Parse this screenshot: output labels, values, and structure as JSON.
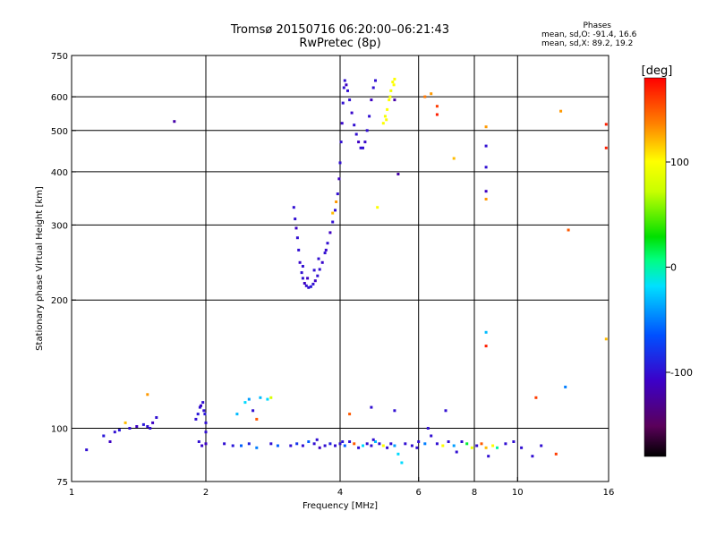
{
  "header": {
    "title_line1": "Tromsø 20150716 06:20:00–06:21:43",
    "title_line2": "RwPretec (8p)"
  },
  "phases": {
    "heading": "Phases",
    "line_o": "mean, sd,O: -91.4, 16.6",
    "line_x": "mean, sd,X:  89.2, 19.2"
  },
  "colorbar": {
    "label": "[deg]",
    "ticks": [
      "100",
      "0",
      "-100"
    ],
    "range": [
      -180,
      180
    ],
    "tick_values": [
      100,
      0,
      -100
    ]
  },
  "chart_data": {
    "type": "scatter",
    "xlabel": "Frequency [MHz]",
    "ylabel": "Stationary phase Virtual Height [km]",
    "x_scale": "log",
    "y_scale": "log",
    "xlim": [
      1,
      16
    ],
    "ylim": [
      75,
      750
    ],
    "x_ticks": [
      1,
      2,
      4,
      6,
      8,
      10,
      16
    ],
    "x_tick_labels": [
      "1",
      "2",
      "4",
      "6",
      "8",
      "10",
      "16"
    ],
    "y_ticks": [
      75,
      100,
      200,
      300,
      400,
      500,
      600,
      750
    ],
    "y_tick_labels": [
      "75",
      "100",
      "200",
      "300",
      "400",
      "500",
      "600",
      "750"
    ],
    "grid_x": [
      2,
      4,
      6,
      8,
      10
    ],
    "grid_y": [
      100,
      200,
      300,
      400,
      500,
      600
    ],
    "grid": true,
    "points": [
      [
        1.08,
        89,
        -100
      ],
      [
        1.18,
        96,
        -95
      ],
      [
        1.22,
        93,
        -110
      ],
      [
        1.25,
        98,
        -100
      ],
      [
        1.28,
        99,
        -95
      ],
      [
        1.32,
        103,
        120
      ],
      [
        1.35,
        100,
        -100
      ],
      [
        1.4,
        101,
        -110
      ],
      [
        1.45,
        102,
        -95
      ],
      [
        1.48,
        101,
        -100
      ],
      [
        1.5,
        100,
        -100
      ],
      [
        1.52,
        103,
        -110
      ],
      [
        1.55,
        106,
        -100
      ],
      [
        1.48,
        120,
        130
      ],
      [
        1.7,
        525,
        -120
      ],
      [
        1.9,
        105,
        -100
      ],
      [
        1.92,
        108,
        -95
      ],
      [
        1.94,
        112,
        -100
      ],
      [
        1.95,
        113,
        -105
      ],
      [
        1.97,
        115,
        -100
      ],
      [
        1.98,
        110,
        -100
      ],
      [
        1.99,
        108,
        -95
      ],
      [
        2.0,
        103,
        -100
      ],
      [
        2.0,
        98,
        -100
      ],
      [
        2.0,
        92,
        -110
      ],
      [
        1.93,
        93,
        -100
      ],
      [
        1.96,
        91,
        -105
      ],
      [
        2.2,
        92,
        -100
      ],
      [
        2.3,
        91,
        -95
      ],
      [
        2.35,
        108,
        -30
      ],
      [
        2.45,
        115,
        -20
      ],
      [
        2.5,
        117,
        -40
      ],
      [
        2.55,
        110,
        -100
      ],
      [
        2.6,
        105,
        150
      ],
      [
        2.65,
        118,
        -30
      ],
      [
        2.75,
        117,
        -20
      ],
      [
        2.8,
        118,
        80
      ],
      [
        2.4,
        91,
        -60
      ],
      [
        2.5,
        92,
        -90
      ],
      [
        2.6,
        90,
        -50
      ],
      [
        2.8,
        92,
        -100
      ],
      [
        2.9,
        91,
        -60
      ],
      [
        3.15,
        330,
        -100
      ],
      [
        3.17,
        310,
        -100
      ],
      [
        3.19,
        295,
        -110
      ],
      [
        3.21,
        280,
        -100
      ],
      [
        3.23,
        262,
        -100
      ],
      [
        3.25,
        245,
        -105
      ],
      [
        3.28,
        232,
        -100
      ],
      [
        3.3,
        225,
        -100
      ],
      [
        3.33,
        219,
        -110
      ],
      [
        3.36,
        216,
        -100
      ],
      [
        3.4,
        214,
        -100
      ],
      [
        3.44,
        215,
        -95
      ],
      [
        3.48,
        218,
        -100
      ],
      [
        3.52,
        222,
        -110
      ],
      [
        3.56,
        228,
        -100
      ],
      [
        3.6,
        236,
        -100
      ],
      [
        3.65,
        245,
        -105
      ],
      [
        3.7,
        258,
        -100
      ],
      [
        3.75,
        272,
        -100
      ],
      [
        3.8,
        288,
        -110
      ],
      [
        3.85,
        305,
        -100
      ],
      [
        3.9,
        325,
        -100
      ],
      [
        3.95,
        355,
        -100
      ],
      [
        3.98,
        385,
        -110
      ],
      [
        4.0,
        420,
        -100
      ],
      [
        4.02,
        470,
        -100
      ],
      [
        4.04,
        520,
        -105
      ],
      [
        4.06,
        580,
        -100
      ],
      [
        4.08,
        630,
        -100
      ],
      [
        4.1,
        655,
        -100
      ],
      [
        4.13,
        640,
        -110
      ],
      [
        4.16,
        620,
        -100
      ],
      [
        4.2,
        590,
        -100
      ],
      [
        4.25,
        550,
        -105
      ],
      [
        4.3,
        515,
        -100
      ],
      [
        4.35,
        490,
        -100
      ],
      [
        4.4,
        470,
        -110
      ],
      [
        4.45,
        455,
        -100
      ],
      [
        4.5,
        455,
        -100
      ],
      [
        4.55,
        470,
        -105
      ],
      [
        4.6,
        500,
        -100
      ],
      [
        4.65,
        540,
        -100
      ],
      [
        4.7,
        590,
        -110
      ],
      [
        4.75,
        630,
        -100
      ],
      [
        4.8,
        655,
        -100
      ],
      [
        3.3,
        240,
        -100
      ],
      [
        3.38,
        225,
        -110
      ],
      [
        3.5,
        235,
        -100
      ],
      [
        3.58,
        250,
        -100
      ],
      [
        3.72,
        262,
        -105
      ],
      [
        3.92,
        340,
        130
      ],
      [
        3.85,
        320,
        120
      ],
      [
        4.85,
        330,
        100
      ],
      [
        5.0,
        520,
        100
      ],
      [
        5.05,
        540,
        95
      ],
      [
        5.1,
        560,
        100
      ],
      [
        5.15,
        590,
        100
      ],
      [
        5.2,
        620,
        95
      ],
      [
        5.25,
        650,
        100
      ],
      [
        5.3,
        660,
        100
      ],
      [
        5.08,
        530,
        100
      ],
      [
        5.18,
        600,
        95
      ],
      [
        5.28,
        640,
        100
      ],
      [
        5.3,
        590,
        -120
      ],
      [
        5.4,
        395,
        -120
      ],
      [
        6.2,
        600,
        140
      ],
      [
        6.4,
        610,
        130
      ],
      [
        6.6,
        570,
        160
      ],
      [
        6.6,
        545,
        170
      ],
      [
        7.2,
        430,
        120
      ],
      [
        8.5,
        510,
        130
      ],
      [
        8.5,
        460,
        -100
      ],
      [
        8.5,
        410,
        -100
      ],
      [
        8.5,
        360,
        -110
      ],
      [
        8.5,
        345,
        130
      ],
      [
        8.5,
        168,
        -30
      ],
      [
        8.5,
        156,
        170
      ],
      [
        12.5,
        555,
        130
      ],
      [
        13.0,
        292,
        150
      ],
      [
        15.8,
        517,
        170
      ],
      [
        15.8,
        455,
        170
      ],
      [
        15.8,
        162,
        120
      ],
      [
        12.8,
        125,
        -50
      ],
      [
        11.0,
        118,
        160
      ],
      [
        4.2,
        108,
        150
      ],
      [
        4.7,
        112,
        -100
      ],
      [
        5.3,
        110,
        -100
      ],
      [
        6.9,
        110,
        -100
      ],
      [
        3.1,
        91,
        -100
      ],
      [
        3.2,
        92,
        -80
      ],
      [
        3.3,
        91,
        -100
      ],
      [
        3.4,
        93,
        -60
      ],
      [
        3.5,
        92,
        -100
      ],
      [
        3.6,
        90,
        -110
      ],
      [
        3.7,
        91,
        -100
      ],
      [
        3.8,
        92,
        -90
      ],
      [
        3.9,
        91,
        -100
      ],
      [
        4.0,
        92,
        -100
      ],
      [
        4.1,
        91,
        -60
      ],
      [
        4.2,
        93,
        -100
      ],
      [
        4.3,
        92,
        150
      ],
      [
        4.4,
        90,
        -100
      ],
      [
        4.5,
        91,
        -20
      ],
      [
        4.6,
        92,
        -100
      ],
      [
        4.7,
        91,
        -100
      ],
      [
        4.8,
        93,
        -30
      ],
      [
        4.9,
        92,
        -100
      ],
      [
        5.0,
        91,
        100
      ],
      [
        5.1,
        90,
        -100
      ],
      [
        5.2,
        92,
        -100
      ],
      [
        5.3,
        91,
        -40
      ],
      [
        5.4,
        87,
        -20
      ],
      [
        5.5,
        83,
        -20
      ],
      [
        5.6,
        92,
        -100
      ],
      [
        5.8,
        91,
        -100
      ],
      [
        6.0,
        93,
        -100
      ],
      [
        6.2,
        92,
        -50
      ],
      [
        6.3,
        100,
        -100
      ],
      [
        6.4,
        96,
        -100
      ],
      [
        6.6,
        92,
        -100
      ],
      [
        6.8,
        91,
        100
      ],
      [
        7.0,
        93,
        -100
      ],
      [
        7.2,
        91,
        -40
      ],
      [
        7.5,
        93,
        -100
      ],
      [
        7.7,
        92,
        20
      ],
      [
        7.9,
        90,
        90
      ],
      [
        8.1,
        91,
        -100
      ],
      [
        8.3,
        92,
        150
      ],
      [
        8.5,
        90,
        120
      ],
      [
        8.6,
        86,
        -100
      ],
      [
        8.8,
        91,
        100
      ],
      [
        9.0,
        90,
        0
      ],
      [
        9.4,
        92,
        -100
      ],
      [
        9.8,
        93,
        -100
      ],
      [
        10.2,
        90,
        -100
      ],
      [
        10.8,
        86,
        -100
      ],
      [
        11.3,
        91,
        -100
      ],
      [
        12.2,
        87,
        160
      ],
      [
        3.55,
        94,
        -100
      ],
      [
        4.05,
        93,
        -95
      ],
      [
        4.75,
        94,
        -100
      ],
      [
        5.95,
        90,
        -100
      ],
      [
        7.3,
        88,
        -100
      ]
    ]
  }
}
